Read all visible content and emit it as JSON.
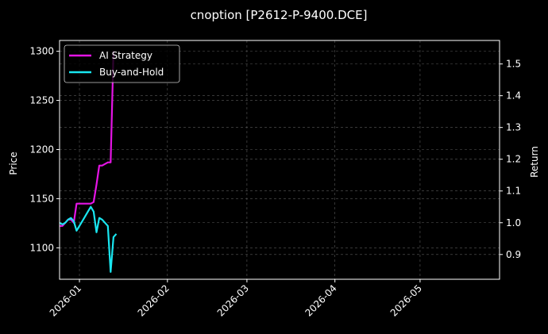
{
  "chart_data": {
    "type": "line",
    "title": "cnoption [P2612-P-9400.DCE]",
    "xlabel": "",
    "ylabel_left": "Price",
    "ylabel_right": "Return",
    "xlim": [
      "2025-12-25",
      "2026-05-29"
    ],
    "ylim_left": [
      1068,
      1311
    ],
    "ylim_right": [
      0.822,
      1.574
    ],
    "x_ticks": [
      "2026-01-01",
      "2026-02-01",
      "2026-03-01",
      "2026-04-01",
      "2026-05-01"
    ],
    "x_tick_labels": [
      "2026-01",
      "2026-02",
      "2026-03",
      "2026-04",
      "2026-05"
    ],
    "y_ticks_left": [
      1100,
      1150,
      1200,
      1250,
      1300
    ],
    "y_ticks_right": [
      0.9,
      1.0,
      1.1,
      1.2,
      1.3,
      1.4,
      1.5
    ],
    "grid": true,
    "legend_position": "top-left",
    "series": [
      {
        "name": "AI Strategy",
        "axis": "right",
        "color": "#e514e5",
        "x": [
          "2025-12-25",
          "2025-12-26",
          "2025-12-28",
          "2025-12-29",
          "2025-12-30",
          "2025-12-31",
          "2026-01-01",
          "2026-01-02",
          "2026-01-03",
          "2026-01-04",
          "2026-01-05",
          "2026-01-06",
          "2026-01-07",
          "2026-01-08",
          "2026-01-09",
          "2026-01-10",
          "2026-01-11",
          "2026-01-12",
          "2026-01-13"
        ],
        "values": [
          0.99,
          0.99,
          1.01,
          1.01,
          1.0,
          1.06,
          1.06,
          1.06,
          1.06,
          1.06,
          1.06,
          1.065,
          1.12,
          1.18,
          1.18,
          1.185,
          1.19,
          1.19,
          1.54
        ]
      },
      {
        "name": "Buy-and-Hold",
        "axis": "right",
        "color": "#19e6f0",
        "x": [
          "2025-12-25",
          "2025-12-26",
          "2025-12-27",
          "2025-12-28",
          "2025-12-29",
          "2025-12-30",
          "2025-12-31",
          "2026-01-01",
          "2026-01-02",
          "2026-01-03",
          "2026-01-04",
          "2026-01-05",
          "2026-01-06",
          "2026-01-07",
          "2026-01-08",
          "2026-01-09",
          "2026-01-10",
          "2026-01-11",
          "2026-01-12",
          "2026-01-13",
          "2026-01-14"
        ],
        "values": [
          1.0,
          0.995,
          1.0,
          1.01,
          1.015,
          1.005,
          0.975,
          0.99,
          1.005,
          1.02,
          1.035,
          1.05,
          1.035,
          0.97,
          1.015,
          1.01,
          1.0,
          0.99,
          0.845,
          0.955,
          0.965
        ]
      }
    ]
  }
}
